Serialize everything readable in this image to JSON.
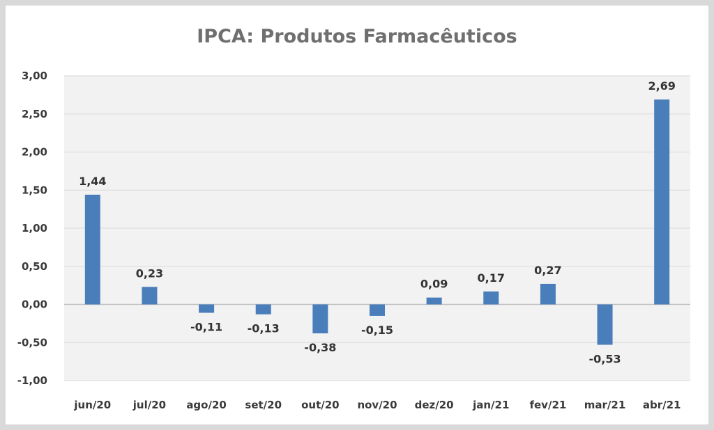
{
  "chart_data": {
    "type": "bar",
    "title": "IPCA: Produtos Farmacêuticos",
    "categories": [
      "jun/20",
      "jul/20",
      "ago/20",
      "set/20",
      "out/20",
      "nov/20",
      "dez/20",
      "jan/21",
      "fev/21",
      "mar/21",
      "abr/21"
    ],
    "values": [
      1.44,
      0.23,
      -0.11,
      -0.13,
      -0.38,
      -0.15,
      0.09,
      0.17,
      0.27,
      -0.53,
      2.69
    ],
    "data_labels": [
      "1,44",
      "0,23",
      "-0,11",
      "-0,13",
      "-0,38",
      "-0,15",
      "0,09",
      "0,17",
      "0,27",
      "-0,53",
      "2,69"
    ],
    "y_ticks": [
      3.0,
      2.5,
      2.0,
      1.5,
      1.0,
      0.5,
      0.0,
      -0.5,
      -1.0
    ],
    "y_tick_labels": [
      "3,00",
      "2,50",
      "2,00",
      "1,50",
      "1,00",
      "0,50",
      "0,00",
      "-0,50",
      "-1,00"
    ],
    "ylim": [
      -1.0,
      3.0
    ],
    "xlabel": "",
    "ylabel": "",
    "grid": true,
    "legend": "none",
    "colors": {
      "bar": "#4a7ebb",
      "plot_background": "#f2f2f2",
      "gridline": "#d9d9d9",
      "frame_border": "#d9d9d9"
    }
  }
}
